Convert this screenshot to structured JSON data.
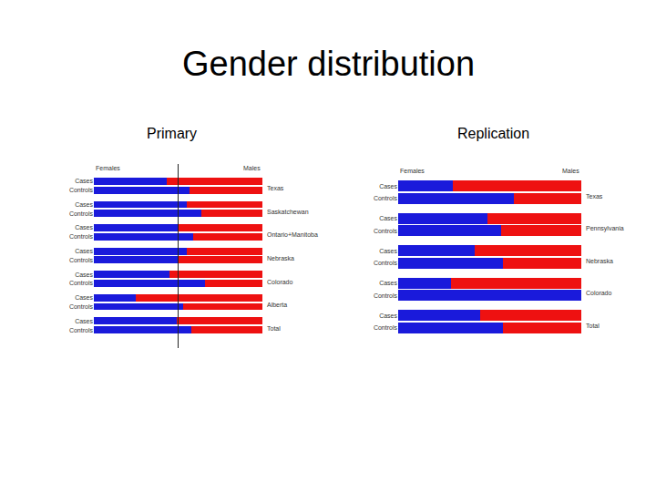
{
  "title": "Gender distribution",
  "chart_data": [
    {
      "type": "bar",
      "title": "Primary",
      "orientation": "horizontal",
      "stacked": true,
      "tick_labels": "y",
      "categories": [
        "Cases",
        "Controls",
        "Cases",
        "Controls",
        "Cases",
        "Controls",
        "Cases",
        "Controls",
        "Cases",
        "Controls",
        "Cases",
        "Controls",
        "Cases",
        "Controls"
      ],
      "groups": [
        "Texas",
        "Saskatchewan",
        "Ontario+Manitoba",
        "Nebraska",
        "Colorado",
        "Alberta",
        "Total"
      ],
      "series": [
        {
          "name": "Females",
          "color": "#1a1adb",
          "values": [
            43,
            57,
            55,
            64,
            50,
            59,
            55,
            50,
            45,
            66,
            25,
            53,
            49,
            58
          ]
        },
        {
          "name": "Males",
          "color": "#ee1111",
          "values": [
            57,
            43,
            45,
            36,
            50,
            41,
            45,
            50,
            55,
            34,
            75,
            47,
            51,
            42
          ]
        }
      ],
      "xlim": [
        0,
        100
      ],
      "vline": 50
    },
    {
      "type": "bar",
      "title": "Replication",
      "orientation": "horizontal",
      "stacked": true,
      "tick_labels": "y",
      "categories": [
        "Cases",
        "Controls",
        "Cases",
        "Controls",
        "Cases",
        "Controls",
        "Cases",
        "Controls",
        "Cases",
        "Controls"
      ],
      "groups": [
        "Texas",
        "Pennsylvania",
        "Nebraska",
        "Colorado",
        "Total"
      ],
      "series": [
        {
          "name": "Females",
          "color": "#1a1adb",
          "values": [
            30,
            63,
            49,
            56,
            42,
            57,
            29,
            100,
            45,
            57
          ]
        },
        {
          "name": "Males",
          "color": "#ee1111",
          "values": [
            70,
            37,
            51,
            44,
            58,
            43,
            71,
            0,
            55,
            43
          ]
        }
      ],
      "xlim": [
        0,
        100
      ]
    }
  ]
}
